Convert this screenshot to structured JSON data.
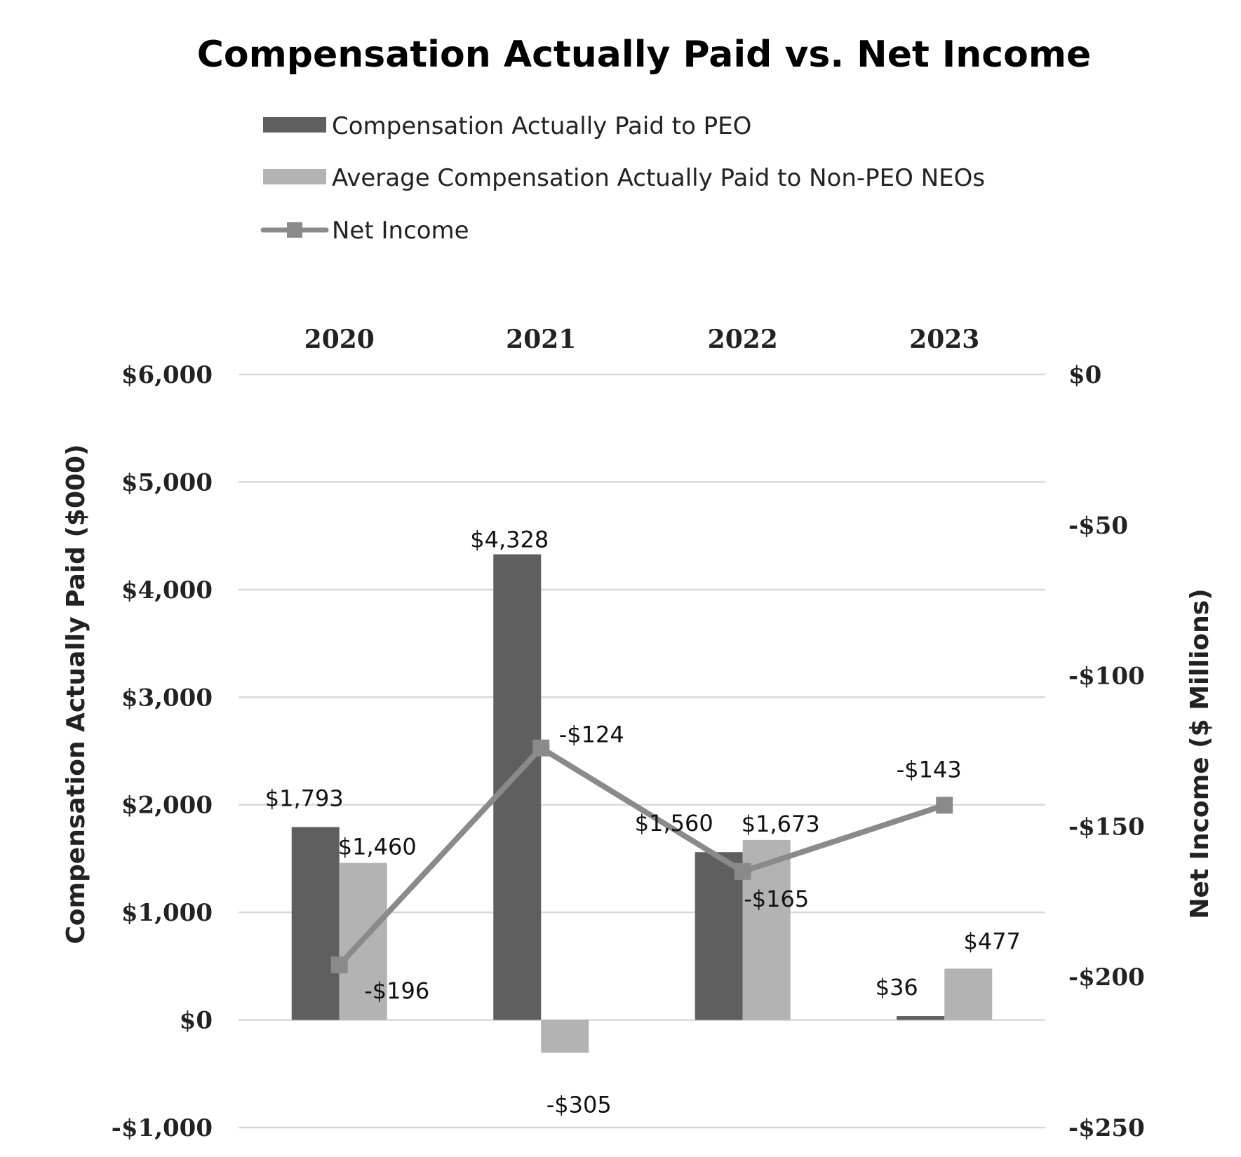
{
  "chart_data": {
    "type": "bar",
    "title": "Compensation Actually Paid vs. Net Income",
    "categories": [
      "2020",
      "2021",
      "2022",
      "2023"
    ],
    "ylabel": "Compensation Actually Paid ($000)",
    "y2label": "Net Income ($ Millions)",
    "ylim": [
      -1000,
      6000
    ],
    "y2lim": [
      -250,
      0
    ],
    "yticks": [
      {
        "value": 6000,
        "label": "$6,000"
      },
      {
        "value": 5000,
        "label": "$5,000"
      },
      {
        "value": 4000,
        "label": "$4,000"
      },
      {
        "value": 3000,
        "label": "$3,000"
      },
      {
        "value": 2000,
        "label": "$2,000"
      },
      {
        "value": 1000,
        "label": "$1,000"
      },
      {
        "value": 0,
        "label": "$0"
      },
      {
        "value": -1000,
        "label": "-$1,000"
      }
    ],
    "y2ticks": [
      {
        "value": 0,
        "label": "$0"
      },
      {
        "value": -50,
        "label": "-$50"
      },
      {
        "value": -100,
        "label": "-$100"
      },
      {
        "value": -150,
        "label": "-$150"
      },
      {
        "value": -200,
        "label": "-$200"
      },
      {
        "value": -250,
        "label": "-$250"
      }
    ],
    "grid": true,
    "legend_position": "top-left",
    "series": [
      {
        "name": "Compensation Actually Paid to PEO",
        "type": "bar",
        "axis": "left",
        "color": "#5f5f5f",
        "values": [
          1793,
          4328,
          1560,
          36
        ],
        "labels": [
          "$1,793",
          "$4,328",
          "$1,560",
          "$36"
        ]
      },
      {
        "name": "Average Compensation Actually Paid to Non-PEO NEOs",
        "type": "bar",
        "axis": "left",
        "color": "#b3b3b3",
        "values": [
          1460,
          -305,
          1673,
          477
        ],
        "labels": [
          "$1,460",
          "-$305",
          "$1,673",
          "$477"
        ]
      },
      {
        "name": "Net Income",
        "type": "line",
        "axis": "right",
        "color": "#8a8a8a",
        "marker": "square",
        "values": [
          -196,
          -124,
          -165,
          -143
        ],
        "labels": [
          "-$196",
          "-$124",
          "-$165",
          "-$143"
        ]
      }
    ]
  }
}
